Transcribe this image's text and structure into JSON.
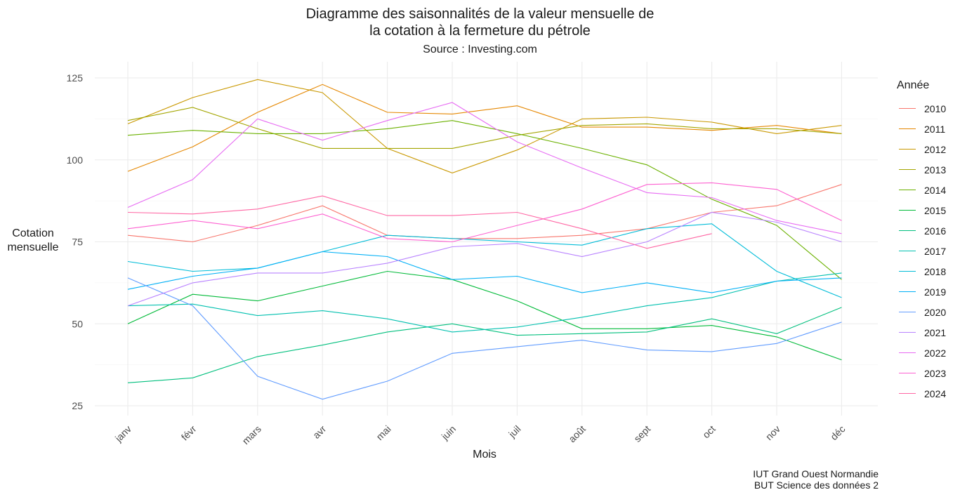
{
  "chart_data": {
    "type": "line",
    "title_line1": "Diagramme des saisonnalités de la valeur mensuelle de",
    "title_line2": "la cotation à la fermeture du pétrole",
    "subtitle": "Source : Investing.com",
    "xlabel": "Mois",
    "ylabel_line1": "Cotation",
    "ylabel_line2": "mensuelle",
    "caption_line1": "IUT Grand Ouest Normandie",
    "caption_line2": "BUT Science des données 2",
    "legend_title": "Année",
    "legend_position": "right",
    "grid": true,
    "categories": [
      "janv",
      "févr",
      "mars",
      "avr",
      "mai",
      "juin",
      "juil",
      "août",
      "sept",
      "oct",
      "nov",
      "déc"
    ],
    "yticks": [
      25,
      50,
      75,
      100,
      125
    ],
    "ylim": [
      22.5,
      126.5
    ],
    "series": [
      {
        "name": "2010",
        "color": "#F8766D",
        "values": [
          77,
          75,
          80,
          86,
          77,
          76,
          76,
          77,
          79,
          84,
          86,
          92.5
        ]
      },
      {
        "name": "2011",
        "color": "#E58700",
        "values": [
          96.5,
          104,
          114.5,
          123,
          114.5,
          114,
          116.5,
          110,
          110,
          109,
          110.5,
          108
        ]
      },
      {
        "name": "2012",
        "color": "#C99800",
        "values": [
          111,
          119,
          124.5,
          120.5,
          103.5,
          96,
          103,
          112.5,
          113,
          111.5,
          108,
          110.5
        ]
      },
      {
        "name": "2013",
        "color": "#A3A500",
        "values": [
          112,
          116,
          109.5,
          103.5,
          103.5,
          103.5,
          107.5,
          110.5,
          111,
          109.5,
          109.5,
          108
        ]
      },
      {
        "name": "2014",
        "color": "#6BB100",
        "values": [
          107.5,
          109,
          108,
          108,
          109.5,
          112,
          108,
          103.5,
          98.5,
          88,
          80,
          63.5
        ]
      },
      {
        "name": "2015",
        "color": "#00BA38",
        "values": [
          50,
          59,
          57,
          61.5,
          66,
          63.5,
          57,
          48.5,
          48.5,
          49.5,
          46,
          39
        ]
      },
      {
        "name": "2016",
        "color": "#00BF7D",
        "values": [
          32,
          33.5,
          40,
          43.5,
          47.5,
          50,
          46.5,
          47,
          47.5,
          51.5,
          47,
          55
        ]
      },
      {
        "name": "2017",
        "color": "#00C0AF",
        "values": [
          55.5,
          56,
          52.5,
          54,
          51.5,
          47.5,
          49,
          52,
          55.5,
          58,
          63,
          65.5
        ]
      },
      {
        "name": "2018",
        "color": "#00BCD8",
        "values": [
          69,
          66,
          67,
          72,
          77,
          76,
          75,
          74,
          79,
          80.5,
          66,
          58
        ]
      },
      {
        "name": "2019",
        "color": "#00B0F6",
        "values": [
          60.5,
          64.5,
          67,
          72,
          70.5,
          63.5,
          64.5,
          59.5,
          62.5,
          59.5,
          63,
          64
        ]
      },
      {
        "name": "2020",
        "color": "#619CFF",
        "values": [
          64,
          55.5,
          34,
          27,
          32.5,
          41,
          43,
          45,
          42,
          41.5,
          44,
          50.5
        ]
      },
      {
        "name": "2021",
        "color": "#B983FF",
        "values": [
          55.5,
          62.5,
          65.5,
          65.5,
          68.5,
          73.5,
          74.5,
          70.5,
          75,
          84,
          81,
          75
        ]
      },
      {
        "name": "2022",
        "color": "#E76BF3",
        "values": [
          85.5,
          94,
          112.5,
          106,
          112,
          117.5,
          105.5,
          97.5,
          90,
          88.5,
          81.5,
          77.5
        ]
      },
      {
        "name": "2023",
        "color": "#FD61D1",
        "values": [
          79,
          81.5,
          79,
          83.5,
          76,
          75,
          80,
          85,
          92.5,
          93,
          91,
          81.5
        ]
      },
      {
        "name": "2024",
        "color": "#FF67A4",
        "values": [
          84,
          83.5,
          85,
          89,
          83,
          83,
          84,
          79,
          73,
          77.5,
          null,
          null
        ]
      }
    ]
  }
}
